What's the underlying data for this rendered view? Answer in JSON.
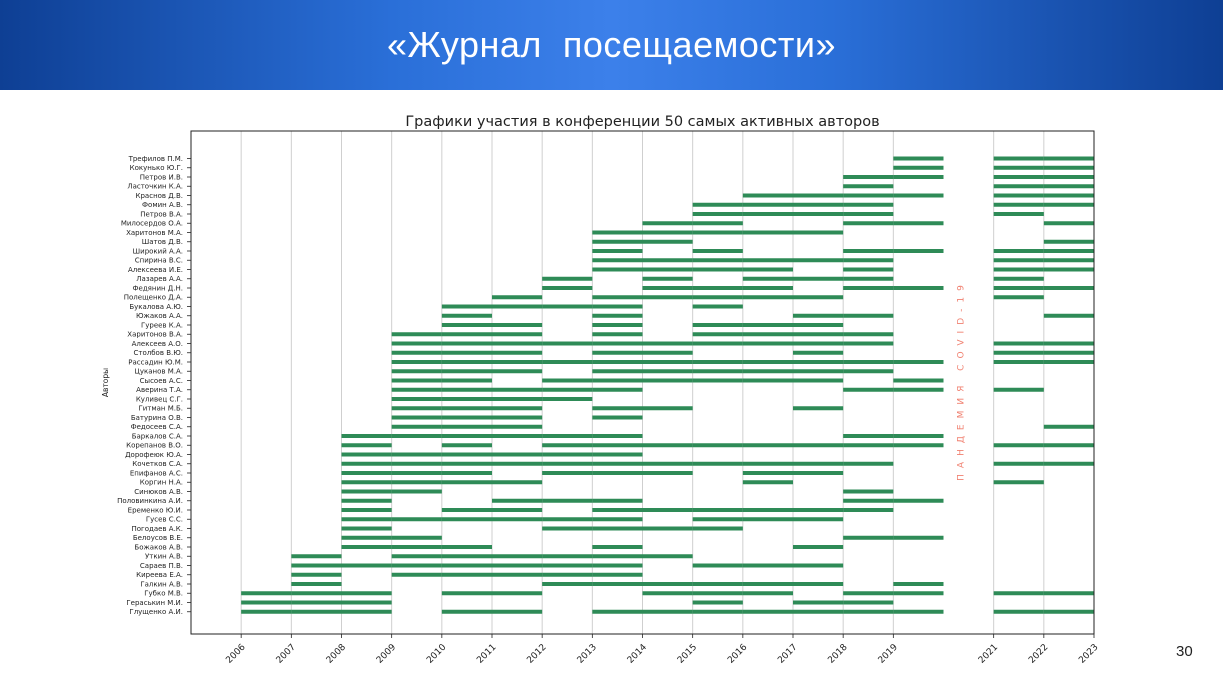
{
  "slide": {
    "title": "«Журнал  посещаемости»",
    "page_number": "30"
  },
  "chart_data": {
    "type": "timeline",
    "title": "Графики участия в конференции 50 самых активных авторов",
    "ylabel": "Авторы",
    "xlabel": "",
    "annotation": "ПАНДЕМИЯ COVID-19",
    "x_range": [
      2005,
      2023
    ],
    "x_ticks": [
      2006,
      2007,
      2008,
      2009,
      2010,
      2011,
      2012,
      2013,
      2014,
      2015,
      2016,
      2017,
      2018,
      2019,
      2021,
      2022,
      2023
    ],
    "bar_color": "#2e8b57",
    "grid_x": true,
    "authors": [
      {
        "name": "Трефилов П.М.",
        "years": [
          2019,
          2021,
          2022
        ]
      },
      {
        "name": "Кокунько Ю.Г.",
        "years": [
          2019,
          2021,
          2022
        ]
      },
      {
        "name": "Петров И.В.",
        "years": [
          2018,
          2019,
          2021,
          2022
        ]
      },
      {
        "name": "Ласточкин К.А.",
        "years": [
          2018,
          2021,
          2022
        ]
      },
      {
        "name": "Краснов Д.В.",
        "years": [
          2016,
          2017,
          2018,
          2019,
          2021,
          2022
        ]
      },
      {
        "name": "Фомин А.В.",
        "years": [
          2015,
          2016,
          2017,
          2018,
          2021,
          2022
        ]
      },
      {
        "name": "Петров В.А.",
        "years": [
          2015,
          2016,
          2017,
          2018,
          2021
        ]
      },
      {
        "name": "Милосердов О.А.",
        "years": [
          2014,
          2015,
          2018,
          2019,
          2022
        ]
      },
      {
        "name": "Харитонов М.А.",
        "years": [
          2013,
          2014,
          2015,
          2016,
          2017
        ]
      },
      {
        "name": "Шатов Д.В.",
        "years": [
          2013,
          2014,
          2022
        ]
      },
      {
        "name": "Широкий А.А.",
        "years": [
          2013,
          2015,
          2018,
          2019,
          2021,
          2022
        ]
      },
      {
        "name": "Спирина В.С.",
        "years": [
          2013,
          2014,
          2015,
          2016,
          2017,
          2018,
          2021,
          2022
        ]
      },
      {
        "name": "Алексеева И.Е.",
        "years": [
          2013,
          2014,
          2015,
          2016,
          2018,
          2021,
          2022
        ]
      },
      {
        "name": "Лазарев А.А.",
        "years": [
          2012,
          2014,
          2016,
          2017,
          2018,
          2021
        ]
      },
      {
        "name": "Федянин Д.Н.",
        "years": [
          2012,
          2014,
          2015,
          2016,
          2018,
          2019,
          2021,
          2022
        ]
      },
      {
        "name": "Полещенко Д.А.",
        "years": [
          2011,
          2013,
          2014,
          2015,
          2016,
          2017,
          2021
        ]
      },
      {
        "name": "Букалова А.Ю.",
        "years": [
          2010,
          2011,
          2012,
          2013,
          2015
        ]
      },
      {
        "name": "Южаков А.А.",
        "years": [
          2010,
          2013,
          2017,
          2018,
          2022
        ]
      },
      {
        "name": "Гуреев К.А.",
        "years": [
          2010,
          2011,
          2013,
          2015,
          2016,
          2017
        ]
      },
      {
        "name": "Харитонов В.А.",
        "years": [
          2009,
          2010,
          2011,
          2013,
          2015,
          2016,
          2017,
          2018
        ]
      },
      {
        "name": "Алексеев А.О.",
        "years": [
          2009,
          2010,
          2011,
          2012,
          2013,
          2014,
          2015,
          2016,
          2017,
          2018,
          2021,
          2022
        ]
      },
      {
        "name": "Столбов В.Ю.",
        "years": [
          2009,
          2010,
          2011,
          2013,
          2014,
          2017,
          2021,
          2022
        ]
      },
      {
        "name": "Рассадин Ю.М.",
        "years": [
          2009,
          2010,
          2011,
          2012,
          2013,
          2014,
          2015,
          2016,
          2017,
          2018,
          2019,
          2021,
          2022
        ]
      },
      {
        "name": "Цуканов М.А.",
        "years": [
          2009,
          2010,
          2011,
          2013,
          2014,
          2015,
          2016,
          2017,
          2018
        ]
      },
      {
        "name": "Сысоев А.С.",
        "years": [
          2009,
          2010,
          2012,
          2013,
          2014,
          2015,
          2016,
          2017,
          2019
        ]
      },
      {
        "name": "Аверина Т.А.",
        "years": [
          2009,
          2010,
          2011,
          2012,
          2013,
          2018,
          2019,
          2021
        ]
      },
      {
        "name": "Куливец С.Г.",
        "years": [
          2009,
          2010,
          2011,
          2012
        ]
      },
      {
        "name": "Гитман М.Б.",
        "years": [
          2009,
          2010,
          2011,
          2013,
          2014,
          2017
        ]
      },
      {
        "name": "Батурина О.В.",
        "years": [
          2009,
          2010,
          2011,
          2013
        ]
      },
      {
        "name": "Федосеев С.А.",
        "years": [
          2009,
          2010,
          2011,
          2022
        ]
      },
      {
        "name": "Баркалов С.А.",
        "years": [
          2008,
          2009,
          2010,
          2011,
          2012,
          2013,
          2018,
          2019
        ]
      },
      {
        "name": "Корепанов В.О.",
        "years": [
          2008,
          2010,
          2012,
          2013,
          2014,
          2015,
          2016,
          2017,
          2018,
          2019,
          2021,
          2022
        ]
      },
      {
        "name": "Дорофеюк Ю.А.",
        "years": [
          2008,
          2009,
          2010,
          2011,
          2012,
          2013
        ]
      },
      {
        "name": "Кочетков С.А.",
        "years": [
          2008,
          2009,
          2010,
          2011,
          2012,
          2013,
          2014,
          2015,
          2016,
          2017,
          2018,
          2021,
          2022
        ]
      },
      {
        "name": "Епифанов А.С.",
        "years": [
          2008,
          2009,
          2010,
          2012,
          2013,
          2014,
          2016,
          2017
        ]
      },
      {
        "name": "Коргин Н.А.",
        "years": [
          2008,
          2009,
          2010,
          2011,
          2016,
          2021
        ]
      },
      {
        "name": "Синюков А.В.",
        "years": [
          2008,
          2009,
          2018
        ]
      },
      {
        "name": "Половинкина А.И.",
        "years": [
          2008,
          2011,
          2012,
          2013,
          2018,
          2019
        ]
      },
      {
        "name": "Еременко Ю.И.",
        "years": [
          2008,
          2010,
          2011,
          2013,
          2014,
          2015,
          2016,
          2017,
          2018
        ]
      },
      {
        "name": "Гусев С.С.",
        "years": [
          2008,
          2009,
          2010,
          2011,
          2012,
          2013,
          2015,
          2016,
          2017
        ]
      },
      {
        "name": "Погодаев А.К.",
        "years": [
          2008,
          2012,
          2013,
          2014,
          2015
        ]
      },
      {
        "name": "Белоусов В.Е.",
        "years": [
          2008,
          2009,
          2018,
          2019
        ]
      },
      {
        "name": "Божаков А.В.",
        "years": [
          2008,
          2009,
          2010,
          2013,
          2017
        ]
      },
      {
        "name": "Уткин А.В.",
        "years": [
          2007,
          2009,
          2010,
          2011,
          2012,
          2013,
          2014
        ]
      },
      {
        "name": "Сараев П.В.",
        "years": [
          2007,
          2008,
          2009,
          2010,
          2011,
          2012,
          2013,
          2015,
          2016,
          2017
        ]
      },
      {
        "name": "Киреева Е.А.",
        "years": [
          2007,
          2009,
          2010,
          2011,
          2012,
          2013
        ]
      },
      {
        "name": "Галкин А.В.",
        "years": [
          2007,
          2012,
          2013,
          2014,
          2015,
          2016,
          2017,
          2019
        ]
      },
      {
        "name": "Губко М.В.",
        "years": [
          2006,
          2007,
          2008,
          2010,
          2011,
          2014,
          2015,
          2016,
          2018,
          2019,
          2021,
          2022
        ]
      },
      {
        "name": "Гераськин М.И.",
        "years": [
          2006,
          2007,
          2008,
          2015,
          2017,
          2018
        ]
      },
      {
        "name": "Глущенко А.И.",
        "years": [
          2006,
          2007,
          2008,
          2010,
          2011,
          2013,
          2014,
          2015,
          2016,
          2017,
          2018,
          2019,
          2021,
          2022
        ]
      }
    ]
  }
}
